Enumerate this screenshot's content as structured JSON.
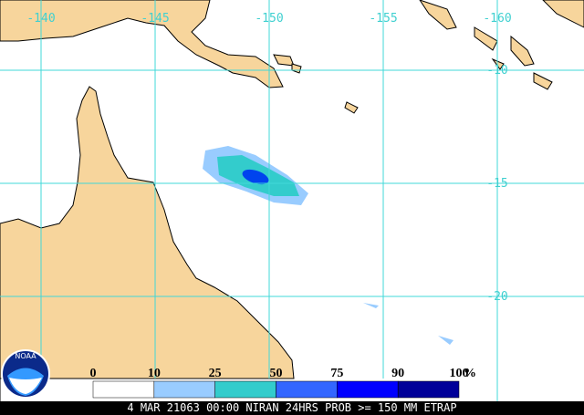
{
  "map": {
    "lon_labels": [
      "-140",
      "-145",
      "-150",
      "-155",
      "-160"
    ],
    "lat_labels": [
      "-10",
      "-15",
      "-20"
    ]
  },
  "legend": {
    "labels": [
      "0",
      "10",
      "25",
      "50",
      "75",
      "90",
      "100"
    ],
    "unit": "%",
    "colors": [
      "#ffffff",
      "#99ccff",
      "#33cccc",
      "#3366ff",
      "#0000ff",
      "#000099"
    ]
  },
  "logo": "NOAA",
  "caption": "4 MAR 21063 00:00 NIRAN 24HRS PROB >= 150 MM ETRAP"
}
